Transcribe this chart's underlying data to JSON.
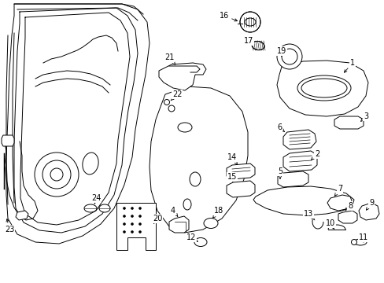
{
  "bg_color": "#ffffff",
  "fig_width": 4.89,
  "fig_height": 3.6,
  "dpi": 100,
  "lw": 0.7
}
